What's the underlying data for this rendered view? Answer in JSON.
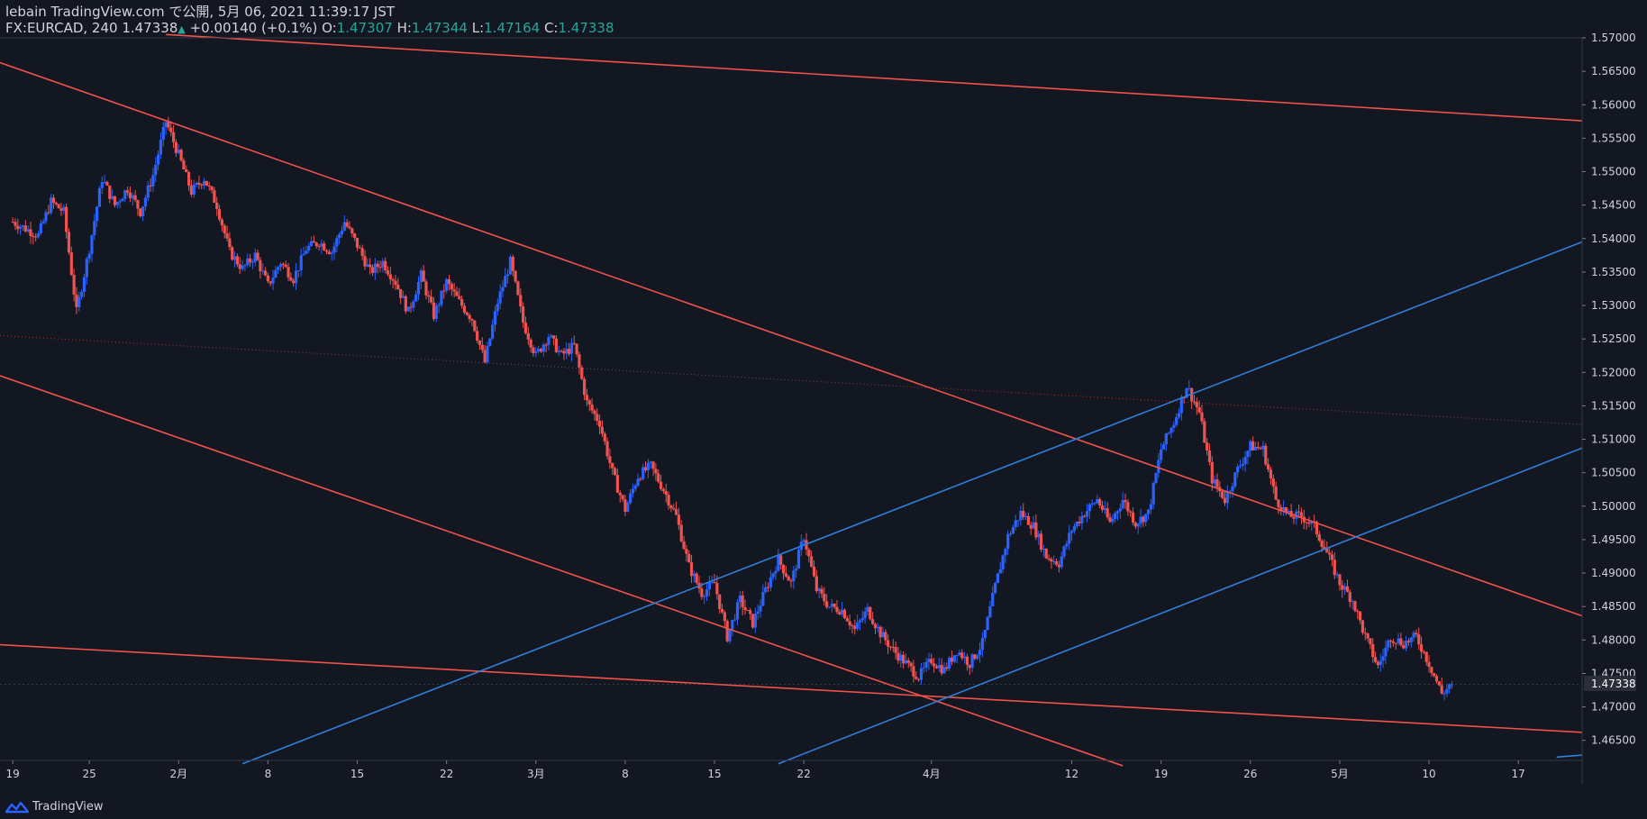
{
  "header": {
    "author_line": "lebain TradingView.com で公開, 5月 06, 2021 11:39:17 JST",
    "symbol": "FX:EURCAD, 240",
    "last": "1.47338",
    "change_arrow": "▲",
    "change": "+0.00140 (+0.1%)",
    "o_label": "O:",
    "o_val": "1.47307",
    "h_label": "H:",
    "h_val": "1.47344",
    "l_label": "L:",
    "l_val": "1.47164",
    "c_label": "C:",
    "c_val": "1.47338"
  },
  "footer": {
    "brand": "TradingView"
  },
  "colors": {
    "background": "#131722",
    "up": "#2962ff",
    "down": "#ef5350",
    "red_line": "#f0524c",
    "blue_line": "#2f7fd8",
    "axis_text": "#d1d4dc"
  },
  "chart_data": {
    "type": "candlestick",
    "symbol": "FX:EURCAD",
    "timeframe": "240",
    "ylim": [
      1.462,
      1.57
    ],
    "y_ticks": [
      "1.57000",
      "1.56500",
      "1.56000",
      "1.55500",
      "1.55000",
      "1.54500",
      "1.54000",
      "1.53500",
      "1.53000",
      "1.52500",
      "1.52000",
      "1.51500",
      "1.51000",
      "1.50500",
      "1.50000",
      "1.49500",
      "1.49000",
      "1.48500",
      "1.48000",
      "1.47500",
      "1.47000",
      "1.46500"
    ],
    "x_ticks": [
      {
        "label": "19",
        "x": 0
      },
      {
        "label": "25",
        "x": 6
      },
      {
        "label": "2月",
        "x": 13
      },
      {
        "label": "8",
        "x": 20
      },
      {
        "label": "15",
        "x": 27
      },
      {
        "label": "22",
        "x": 34
      },
      {
        "label": "3月",
        "x": 41
      },
      {
        "label": "8",
        "x": 48
      },
      {
        "label": "15",
        "x": 55
      },
      {
        "label": "22",
        "x": 62
      },
      {
        "label": "4月",
        "x": 72
      },
      {
        "label": "12",
        "x": 83
      },
      {
        "label": "19",
        "x": 90
      },
      {
        "label": "26",
        "x": 97
      },
      {
        "label": "5月",
        "x": 104
      },
      {
        "label": "10",
        "x": 111
      },
      {
        "label": "17",
        "x": 118
      }
    ],
    "x_range": [
      -1,
      123
    ],
    "price_label": "1.47338",
    "price_line": 1.47338,
    "close_path": [
      [
        0,
        1.5425
      ],
      [
        2,
        1.5405
      ],
      [
        3,
        1.5455
      ],
      [
        4,
        1.544
      ],
      [
        5,
        1.529
      ],
      [
        6,
        1.5385
      ],
      [
        7,
        1.549
      ],
      [
        8,
        1.545
      ],
      [
        9,
        1.5475
      ],
      [
        10,
        1.544
      ],
      [
        11,
        1.5495
      ],
      [
        12,
        1.5575
      ],
      [
        13,
        1.5525
      ],
      [
        14,
        1.547
      ],
      [
        15,
        1.549
      ],
      [
        16,
        1.545
      ],
      [
        17,
        1.538
      ],
      [
        18,
        1.5355
      ],
      [
        19,
        1.5375
      ],
      [
        20,
        1.533
      ],
      [
        21,
        1.5365
      ],
      [
        22,
        1.534
      ],
      [
        23,
        1.5385
      ],
      [
        24,
        1.5395
      ],
      [
        25,
        1.538
      ],
      [
        26,
        1.5425
      ],
      [
        27,
        1.539
      ],
      [
        28,
        1.535
      ],
      [
        29,
        1.5365
      ],
      [
        30,
        1.5335
      ],
      [
        31,
        1.529
      ],
      [
        32,
        1.5345
      ],
      [
        33,
        1.5285
      ],
      [
        34,
        1.5335
      ],
      [
        35,
        1.5305
      ],
      [
        36,
        1.528
      ],
      [
        37,
        1.5215
      ],
      [
        38,
        1.5305
      ],
      [
        39,
        1.5365
      ],
      [
        40,
        1.5275
      ],
      [
        41,
        1.5225
      ],
      [
        42,
        1.5255
      ],
      [
        43,
        1.5225
      ],
      [
        44,
        1.524
      ],
      [
        45,
        1.5155
      ],
      [
        46,
        1.5125
      ],
      [
        47,
        1.505
      ],
      [
        48,
        1.4995
      ],
      [
        49,
        1.5045
      ],
      [
        50,
        1.506
      ],
      [
        51,
        1.5025
      ],
      [
        52,
        1.4985
      ],
      [
        53,
        1.491
      ],
      [
        54,
        1.487
      ],
      [
        55,
        1.4885
      ],
      [
        56,
        1.4805
      ],
      [
        57,
        1.486
      ],
      [
        58,
        1.4825
      ],
      [
        59,
        1.4875
      ],
      [
        60,
        1.492
      ],
      [
        61,
        1.4885
      ],
      [
        62,
        1.4955
      ],
      [
        63,
        1.4875
      ],
      [
        64,
        1.485
      ],
      [
        65,
        1.4845
      ],
      [
        66,
        1.4815
      ],
      [
        67,
        1.4845
      ],
      [
        68,
        1.481
      ],
      [
        69,
        1.4785
      ],
      [
        70,
        1.4765
      ],
      [
        71,
        1.4745
      ],
      [
        72,
        1.477
      ],
      [
        73,
        1.4755
      ],
      [
        74,
        1.4785
      ],
      [
        75,
        1.4765
      ],
      [
        76,
        1.4795
      ],
      [
        77,
        1.488
      ],
      [
        78,
        1.4955
      ],
      [
        79,
        1.499
      ],
      [
        80,
        1.497
      ],
      [
        81,
        1.4925
      ],
      [
        82,
        1.4915
      ],
      [
        83,
        1.4965
      ],
      [
        84,
        1.499
      ],
      [
        85,
        1.501
      ],
      [
        86,
        1.4975
      ],
      [
        87,
        1.501
      ],
      [
        88,
        1.4975
      ],
      [
        89,
        1.499
      ],
      [
        90,
        1.5085
      ],
      [
        91,
        1.5125
      ],
      [
        92,
        1.518
      ],
      [
        93,
        1.514
      ],
      [
        94,
        1.504
      ],
      [
        95,
        1.501
      ],
      [
        96,
        1.5055
      ],
      [
        97,
        1.509
      ],
      [
        98,
        1.5085
      ],
      [
        99,
        1.501
      ],
      [
        100,
        1.4985
      ],
      [
        101,
        1.4985
      ],
      [
        102,
        1.497
      ],
      [
        103,
        1.493
      ],
      [
        104,
        1.4885
      ],
      [
        105,
        1.486
      ],
      [
        106,
        1.4805
      ],
      [
        107,
        1.476
      ],
      [
        108,
        1.4805
      ],
      [
        109,
        1.4795
      ],
      [
        110,
        1.4805
      ],
      [
        111,
        1.4765
      ],
      [
        112,
        1.472
      ],
      [
        112.8,
        1.47338
      ]
    ],
    "trendlines": [
      {
        "color": "red",
        "style": "solid",
        "points": [
          [
            12,
            1.5705
          ],
          [
            123,
            1.5576
          ]
        ]
      },
      {
        "color": "red",
        "style": "solid",
        "points": [
          [
            -1,
            1.5663
          ],
          [
            123,
            1.4836
          ]
        ]
      },
      {
        "color": "red",
        "style": "solid",
        "points": [
          [
            -1,
            1.5195
          ],
          [
            87,
            1.4612
          ]
        ]
      },
      {
        "color": "red",
        "style": "solid",
        "points": [
          [
            -1,
            1.4793
          ],
          [
            123,
            1.4662
          ]
        ]
      },
      {
        "color": "red",
        "style": "dotted",
        "points": [
          [
            -1,
            1.5255
          ],
          [
            123,
            1.5122
          ]
        ]
      },
      {
        "color": "blue",
        "style": "solid",
        "points": [
          [
            18,
            1.4615
          ],
          [
            123,
            1.5395
          ]
        ]
      },
      {
        "color": "blue",
        "style": "solid",
        "points": [
          [
            60,
            1.4615
          ],
          [
            123,
            1.5087
          ]
        ]
      },
      {
        "color": "blue",
        "style": "solid",
        "points": [
          [
            121,
            1.4625
          ],
          [
            123,
            1.4628
          ]
        ]
      }
    ]
  }
}
